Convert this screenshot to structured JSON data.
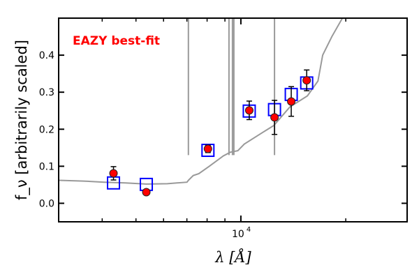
{
  "chart_data": {
    "type": "scatter",
    "title": "",
    "annotation": "EAZY best-fit",
    "xlabel": "λ [Å]",
    "ylabel": "f_ν [arbitrarily scaled]",
    "xscale": "log",
    "xlim": [
      3000,
      30000
    ],
    "ylim": [
      -0.05,
      0.5
    ],
    "xticks": [
      {
        "value": 10000,
        "label": "10",
        "exp": "4"
      }
    ],
    "yticks": [
      0.0,
      0.1,
      0.2,
      0.3,
      0.4
    ],
    "ytick_labels": [
      "0.0",
      "0.1",
      "0.2",
      "0.3",
      "0.4"
    ],
    "colors": {
      "observed": "#ff0000",
      "model": "#0000ff",
      "sed": "#999999",
      "annotation": "#ff0000"
    },
    "observed": [
      {
        "x": 4310,
        "y": 0.081,
        "err": 0.018
      },
      {
        "x": 5354,
        "y": 0.03,
        "err": 0.007
      },
      {
        "x": 8045,
        "y": 0.147,
        "err": 0.01
      },
      {
        "x": 10570,
        "y": 0.251,
        "err": 0.025
      },
      {
        "x": 12490,
        "y": 0.232,
        "err": 0.046
      },
      {
        "x": 13950,
        "y": 0.275,
        "err": 0.04
      },
      {
        "x": 15450,
        "y": 0.332,
        "err": 0.028
      }
    ],
    "model_photometry": [
      {
        "x": 4310,
        "y": 0.055
      },
      {
        "x": 5354,
        "y": 0.051
      },
      {
        "x": 8045,
        "y": 0.143
      },
      {
        "x": 10570,
        "y": 0.249
      },
      {
        "x": 12490,
        "y": 0.253
      },
      {
        "x": 13950,
        "y": 0.294
      },
      {
        "x": 15450,
        "y": 0.325
      }
    ],
    "sed": [
      [
        2990,
        0.062
      ],
      [
        3532,
        0.06
      ],
      [
        4059,
        0.057
      ],
      [
        4665,
        0.055
      ],
      [
        5354,
        0.052
      ],
      [
        6152,
        0.053
      ],
      [
        7004,
        0.057
      ],
      [
        7070,
        0.062
      ],
      [
        7300,
        0.075
      ],
      [
        7575,
        0.08
      ],
      [
        8120,
        0.1
      ],
      [
        8909,
        0.128
      ],
      [
        9330,
        0.138
      ],
      [
        9800,
        0.142
      ],
      [
        10230,
        0.16
      ],
      [
        11490,
        0.19
      ],
      [
        12430,
        0.21
      ],
      [
        13820,
        0.26
      ],
      [
        15520,
        0.29
      ],
      [
        16640,
        0.33
      ],
      [
        17170,
        0.4
      ],
      [
        18240,
        0.45
      ],
      [
        19560,
        0.5
      ],
      [
        20500,
        0.55
      ]
    ],
    "emission_lines": [
      7070,
      9244,
      9460,
      9548,
      12490
    ]
  }
}
